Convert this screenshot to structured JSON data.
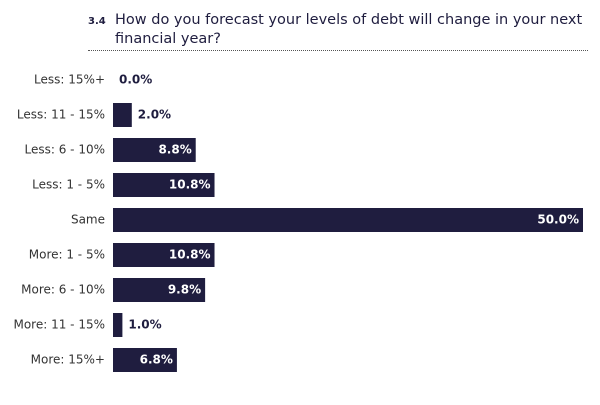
{
  "chart_data": {
    "type": "bar",
    "orientation": "horizontal",
    "figure_number": "3.4",
    "title": "How do you forecast your levels of debt will change in your next financial year?",
    "categories": [
      "Less: 15%+",
      "Less: 11 - 15%",
      "Less: 6 - 10%",
      "Less: 1 - 5%",
      "Same",
      "More: 1 - 5%",
      "More: 6 - 10%",
      "More: 11 - 15%",
      "More: 15%+"
    ],
    "values": [
      0,
      2,
      8.8,
      10.8,
      50,
      10.8,
      9.8,
      1,
      6.8
    ],
    "value_labels": [
      "0.0%",
      "2.0%",
      "8.8%",
      "10.8%",
      "50.0%",
      "10.8%",
      "9.8%",
      "1.0%",
      "6.8%"
    ],
    "color": "#1f1d3f"
  }
}
